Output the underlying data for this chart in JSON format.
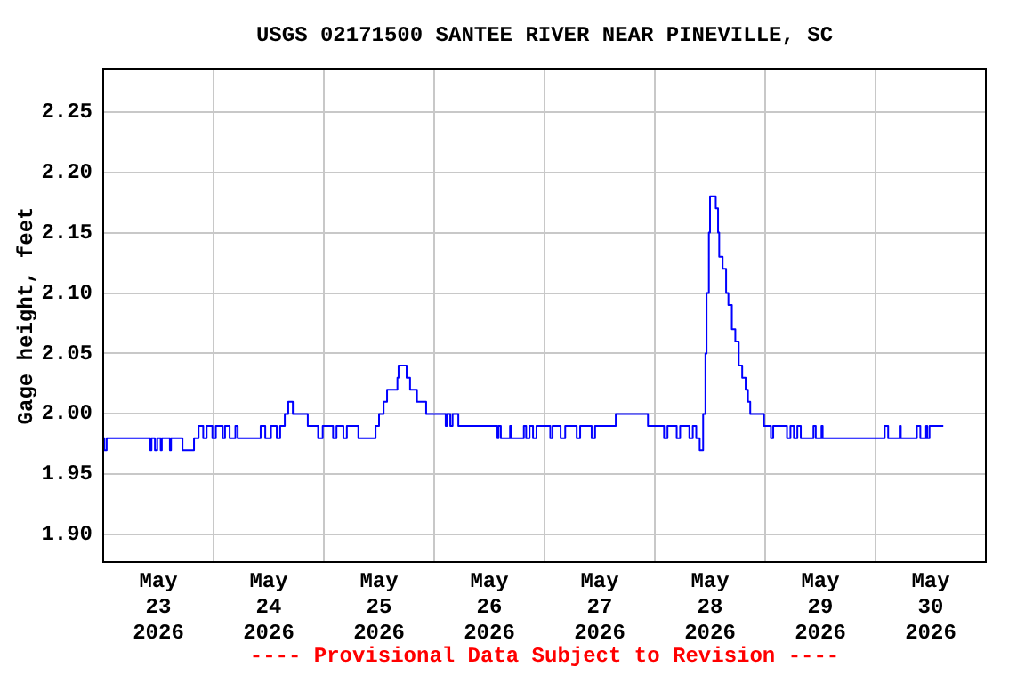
{
  "chart_data": {
    "type": "step",
    "title": "USGS 02171500 SANTEE RIVER NEAR PINEVILLE, SC",
    "ylabel": "Gage height, feet",
    "annotations": [
      "---- Provisional Data Subject to Revision ----"
    ],
    "x": [
      "2026-05-23T00:00",
      "2026-05-23T00:15",
      "2026-05-23T00:45",
      "2026-05-23T10:15",
      "2026-05-23T10:30",
      "2026-05-23T11:15",
      "2026-05-23T11:45",
      "2026-05-23T12:30",
      "2026-05-23T12:45",
      "2026-05-23T14:30",
      "2026-05-23T14:45",
      "2026-05-23T17:15",
      "2026-05-23T19:45",
      "2026-05-23T20:45",
      "2026-05-23T21:45",
      "2026-05-23T22:30",
      "2026-05-23T23:45",
      "2026-05-24T00:30",
      "2026-05-24T02:00",
      "2026-05-24T02:30",
      "2026-05-24T03:30",
      "2026-05-24T04:45",
      "2026-05-24T05:15",
      "2026-05-24T10:15",
      "2026-05-24T11:15",
      "2026-05-24T12:30",
      "2026-05-24T13:45",
      "2026-05-24T14:30",
      "2026-05-24T15:30",
      "2026-05-24T16:15",
      "2026-05-24T17:15",
      "2026-05-24T20:30",
      "2026-05-24T22:45",
      "2026-05-24T23:45",
      "2026-05-25T02:00",
      "2026-05-25T02:45",
      "2026-05-25T04:15",
      "2026-05-25T05:00",
      "2026-05-25T07:30",
      "2026-05-25T11:15",
      "2026-05-25T12:00",
      "2026-05-25T13:00",
      "2026-05-25T13:45",
      "2026-05-25T16:00",
      "2026-05-25T16:15",
      "2026-05-25T18:00",
      "2026-05-25T18:45",
      "2026-05-25T20:15",
      "2026-05-25T22:15",
      "2026-05-26T02:30",
      "2026-05-26T02:45",
      "2026-05-26T03:30",
      "2026-05-26T04:00",
      "2026-05-26T05:15",
      "2026-05-26T13:45",
      "2026-05-26T14:00",
      "2026-05-26T14:30",
      "2026-05-26T16:30",
      "2026-05-26T16:45",
      "2026-05-26T19:30",
      "2026-05-26T20:00",
      "2026-05-26T20:45",
      "2026-05-26T21:30",
      "2026-05-26T22:15",
      "2026-05-27T01:15",
      "2026-05-27T01:45",
      "2026-05-27T03:30",
      "2026-05-27T04:30",
      "2026-05-27T07:00",
      "2026-05-27T07:45",
      "2026-05-27T10:15",
      "2026-05-27T11:00",
      "2026-05-27T15:30",
      "2026-05-27T22:30",
      "2026-05-28T02:00",
      "2026-05-28T02:45",
      "2026-05-28T04:45",
      "2026-05-28T05:30",
      "2026-05-28T07:30",
      "2026-05-28T08:15",
      "2026-05-28T09:00",
      "2026-05-28T09:45",
      "2026-05-28T10:30",
      "2026-05-28T11:00",
      "2026-05-28T11:15",
      "2026-05-28T11:45",
      "2026-05-28T12:00",
      "2026-05-28T13:15",
      "2026-05-28T13:45",
      "2026-05-28T14:00",
      "2026-05-28T14:45",
      "2026-05-28T15:30",
      "2026-05-28T16:00",
      "2026-05-28T16:45",
      "2026-05-28T17:30",
      "2026-05-28T18:15",
      "2026-05-28T19:00",
      "2026-05-28T19:45",
      "2026-05-28T20:15",
      "2026-05-28T20:45",
      "2026-05-28T23:45",
      "2026-05-29T01:15",
      "2026-05-29T01:45",
      "2026-05-29T04:45",
      "2026-05-29T05:30",
      "2026-05-29T06:15",
      "2026-05-29T07:00",
      "2026-05-29T07:45",
      "2026-05-29T10:30",
      "2026-05-29T11:00",
      "2026-05-29T12:15",
      "2026-05-29T12:30",
      "2026-05-30T02:00",
      "2026-05-30T02:45",
      "2026-05-30T05:15",
      "2026-05-30T05:30",
      "2026-05-30T09:00",
      "2026-05-30T09:45",
      "2026-05-30T11:00",
      "2026-05-30T11:15",
      "2026-05-30T11:45",
      "2026-05-30T14:45"
    ],
    "values": [
      1.98,
      1.97,
      1.98,
      1.97,
      1.98,
      1.97,
      1.98,
      1.97,
      1.98,
      1.97,
      1.98,
      1.97,
      1.98,
      1.99,
      1.98,
      1.99,
      1.98,
      1.99,
      1.98,
      1.99,
      1.98,
      1.99,
      1.98,
      1.99,
      1.98,
      1.99,
      1.98,
      1.99,
      2.0,
      2.01,
      2.0,
      1.99,
      1.98,
      1.99,
      1.98,
      1.99,
      1.98,
      1.99,
      1.98,
      1.99,
      2.0,
      2.01,
      2.02,
      2.03,
      2.04,
      2.03,
      2.02,
      2.01,
      2.0,
      1.99,
      2.0,
      1.99,
      2.0,
      1.99,
      1.98,
      1.99,
      1.98,
      1.99,
      1.98,
      1.99,
      1.98,
      1.99,
      1.98,
      1.99,
      1.98,
      1.99,
      1.98,
      1.99,
      1.98,
      1.99,
      1.98,
      1.99,
      2.0,
      1.99,
      1.98,
      1.99,
      1.98,
      1.99,
      1.98,
      1.99,
      1.98,
      1.97,
      2.0,
      2.05,
      2.1,
      2.15,
      2.18,
      2.17,
      2.15,
      2.13,
      2.12,
      2.1,
      2.09,
      2.07,
      2.06,
      2.04,
      2.03,
      2.02,
      2.01,
      2.0,
      1.99,
      1.98,
      1.99,
      1.98,
      1.99,
      1.98,
      1.99,
      1.98,
      1.99,
      1.98,
      1.99,
      1.98,
      1.99,
      1.98,
      1.99,
      1.98,
      1.99,
      1.98,
      1.99,
      1.98,
      1.99,
      1.99
    ],
    "color": "#0000ff",
    "marker": "none",
    "line_style": "solid",
    "legend": false,
    "grid": true,
    "xlim": [
      "2026-05-23T00:00",
      "2026-05-31T00:00"
    ],
    "xticks": [
      {
        "value": "2026-05-23T12:00",
        "label": "May\n23\n2026"
      },
      {
        "value": "2026-05-24T00:00",
        "label": null
      },
      {
        "value": "2026-05-24T12:00",
        "label": "May\n24\n2026"
      },
      {
        "value": "2026-05-25T00:00",
        "label": null
      },
      {
        "value": "2026-05-25T12:00",
        "label": "May\n25\n2026"
      },
      {
        "value": "2026-05-26T00:00",
        "label": null
      },
      {
        "value": "2026-05-26T12:00",
        "label": "May\n26\n2026"
      },
      {
        "value": "2026-05-27T00:00",
        "label": null
      },
      {
        "value": "2026-05-27T12:00",
        "label": "May\n27\n2026"
      },
      {
        "value": "2026-05-28T00:00",
        "label": null
      },
      {
        "value": "2026-05-28T12:00",
        "label": "May\n28\n2026"
      },
      {
        "value": "2026-05-29T00:00",
        "label": null
      },
      {
        "value": "2026-05-29T12:00",
        "label": "May\n29\n2026"
      },
      {
        "value": "2026-05-30T00:00",
        "label": null
      },
      {
        "value": "2026-05-30T12:00",
        "label": "May\n30\n2026"
      }
    ],
    "ylim": [
      1.8775,
      2.285
    ],
    "yticks": [
      {
        "value": 1.9,
        "label": "1.90"
      },
      1.95,
      {
        "value": 2.0,
        "label": "2.00"
      },
      2.05,
      {
        "value": 2.1,
        "label": "2.10"
      },
      2.15,
      {
        "value": 2.2,
        "label": "2.20"
      },
      2.25
    ]
  }
}
